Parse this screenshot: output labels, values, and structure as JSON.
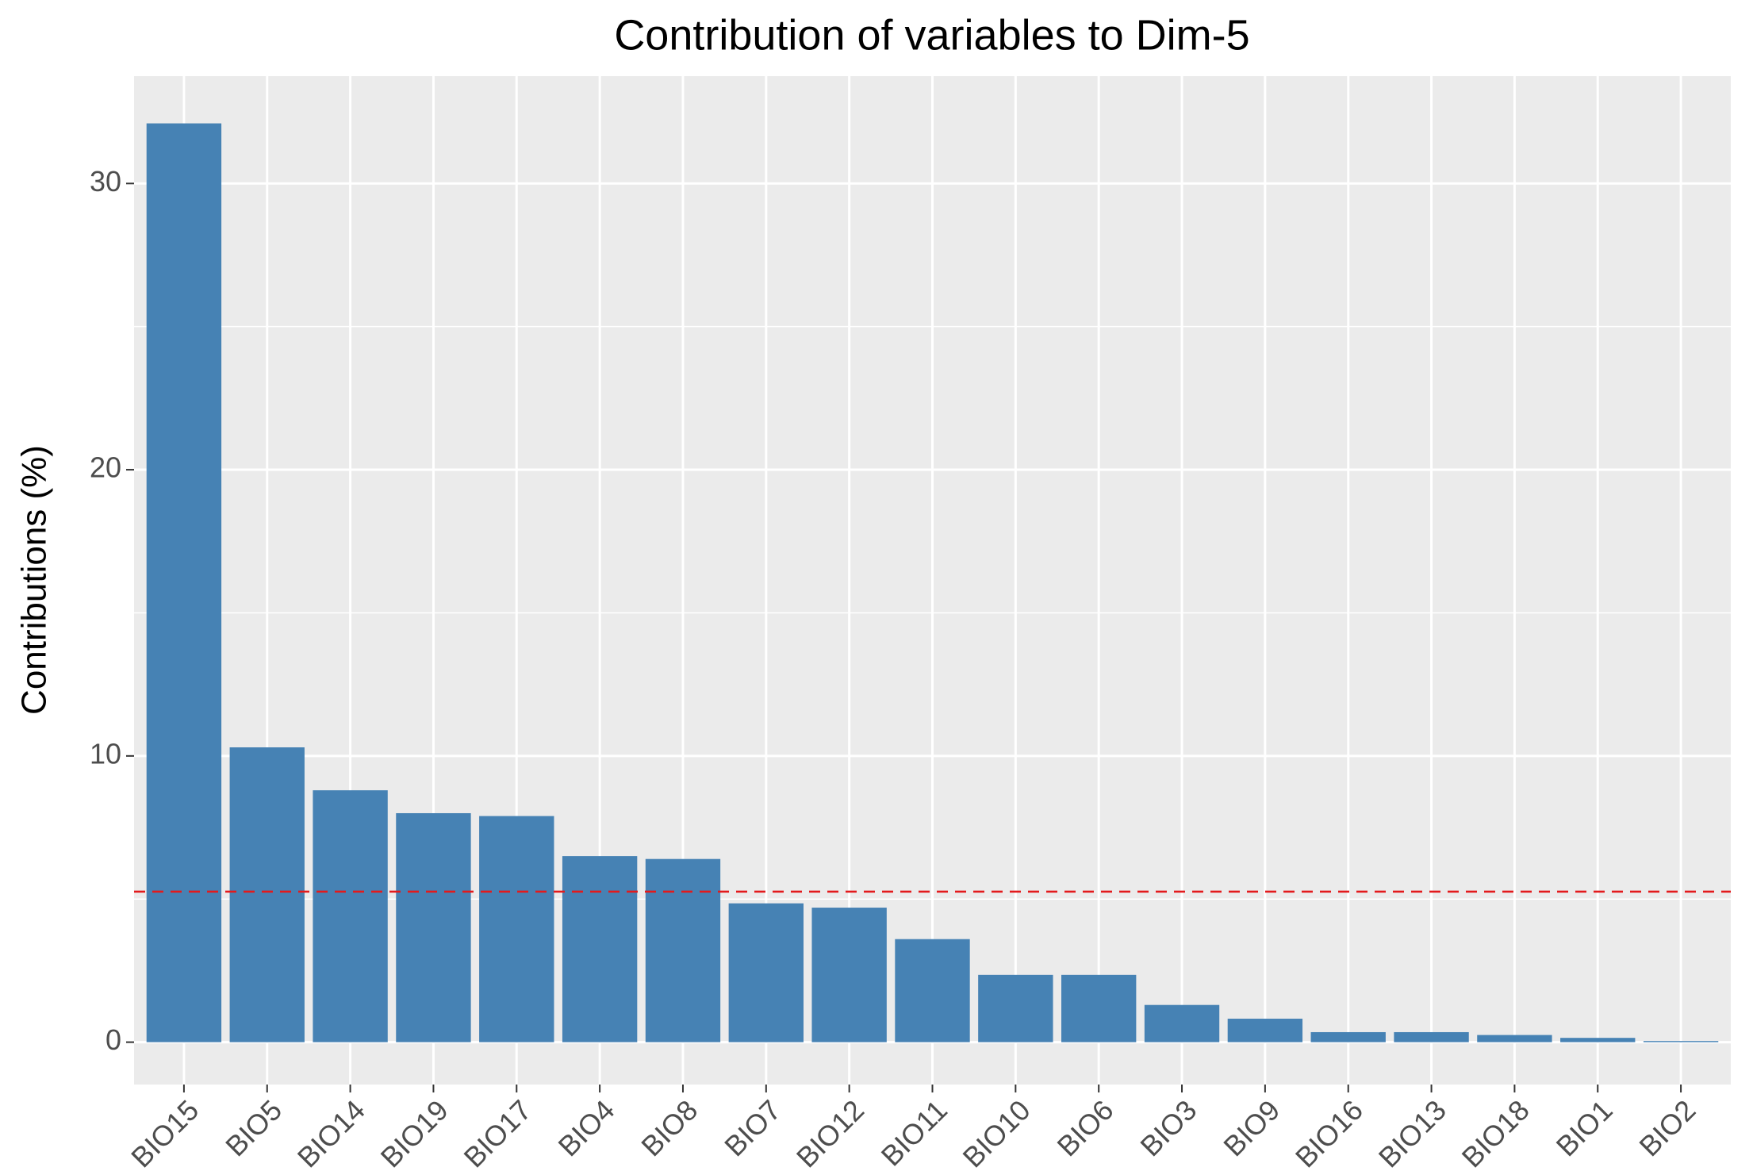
{
  "chart_data": {
    "type": "bar",
    "title": "Contribution of variables to Dim-5",
    "y_label": "Contributions (%)",
    "categories": [
      "BIO15",
      "BIO5",
      "BIO14",
      "BIO19",
      "BIO17",
      "BIO4",
      "BIO8",
      "BIO7",
      "BIO12",
      "BIO11",
      "BIO10",
      "BIO6",
      "BIO3",
      "BIO9",
      "BIO16",
      "BIO13",
      "BIO18",
      "BIO1",
      "BIO2"
    ],
    "values": [
      32.1,
      10.3,
      8.8,
      8.0,
      7.9,
      6.5,
      6.4,
      4.85,
      4.7,
      3.6,
      2.35,
      2.35,
      1.3,
      0.82,
      0.35,
      0.35,
      0.25,
      0.15,
      0.04
    ],
    "color": "#4682b4",
    "ylim": [
      -1.48,
      33.75
    ],
    "yticks": [
      0,
      10,
      20,
      30
    ],
    "y_minor_grid": [
      5,
      15,
      25
    ],
    "grid": true,
    "reference_line": 5.26,
    "reference_color": "#e31a1c"
  }
}
